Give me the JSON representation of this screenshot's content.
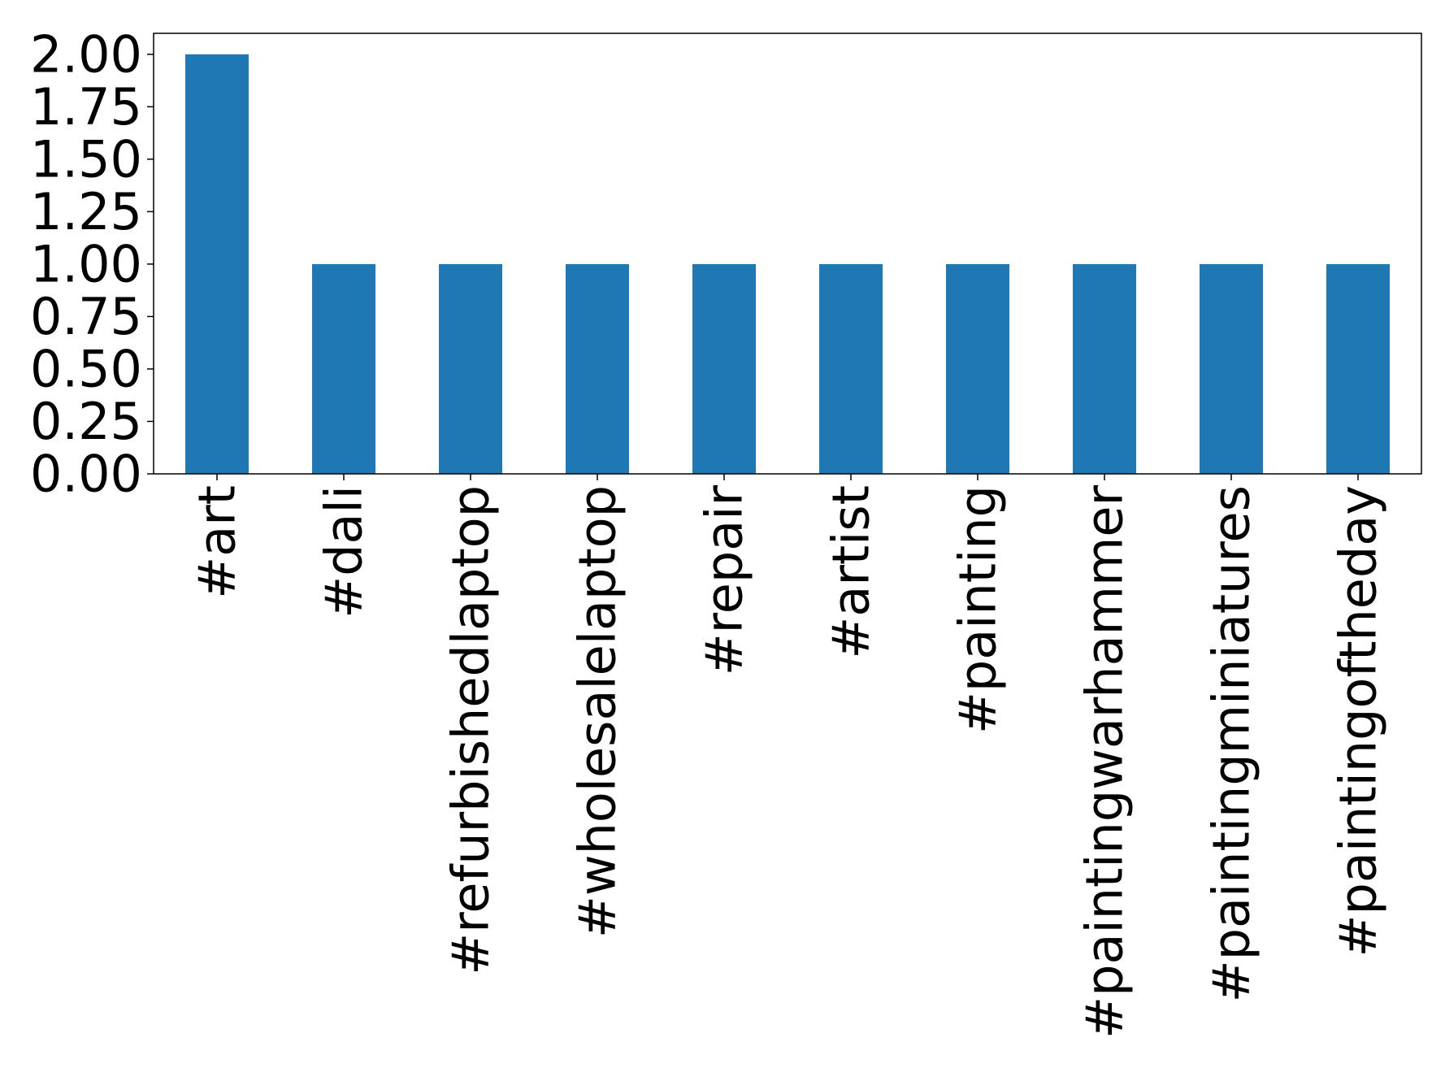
{
  "chart_data": {
    "type": "bar",
    "categories": [
      "#art",
      "#dali",
      "#refurbishedlaptop",
      "#wholesalelaptop",
      "#repair",
      "#artist",
      "#painting",
      "#paintingwarhammer",
      "#paintingminiatures",
      "#paintingoftheday"
    ],
    "values": [
      2,
      1,
      1,
      1,
      1,
      1,
      1,
      1,
      1,
      1
    ],
    "color": "#1f77b4",
    "ylim": [
      0,
      2.1
    ],
    "yticks": [
      {
        "value": 0,
        "label": "0.00"
      },
      {
        "value": 0.25,
        "label": "0.25"
      },
      {
        "value": 0.5,
        "label": "0.50"
      },
      {
        "value": 0.75,
        "label": "0.75"
      },
      {
        "value": 1,
        "label": "1.00"
      },
      {
        "value": 1.25,
        "label": "1.25"
      },
      {
        "value": 1.5,
        "label": "1.50"
      },
      {
        "value": 1.75,
        "label": "1.75"
      },
      {
        "value": 2,
        "label": "2.00"
      }
    ],
    "grid": false
  }
}
